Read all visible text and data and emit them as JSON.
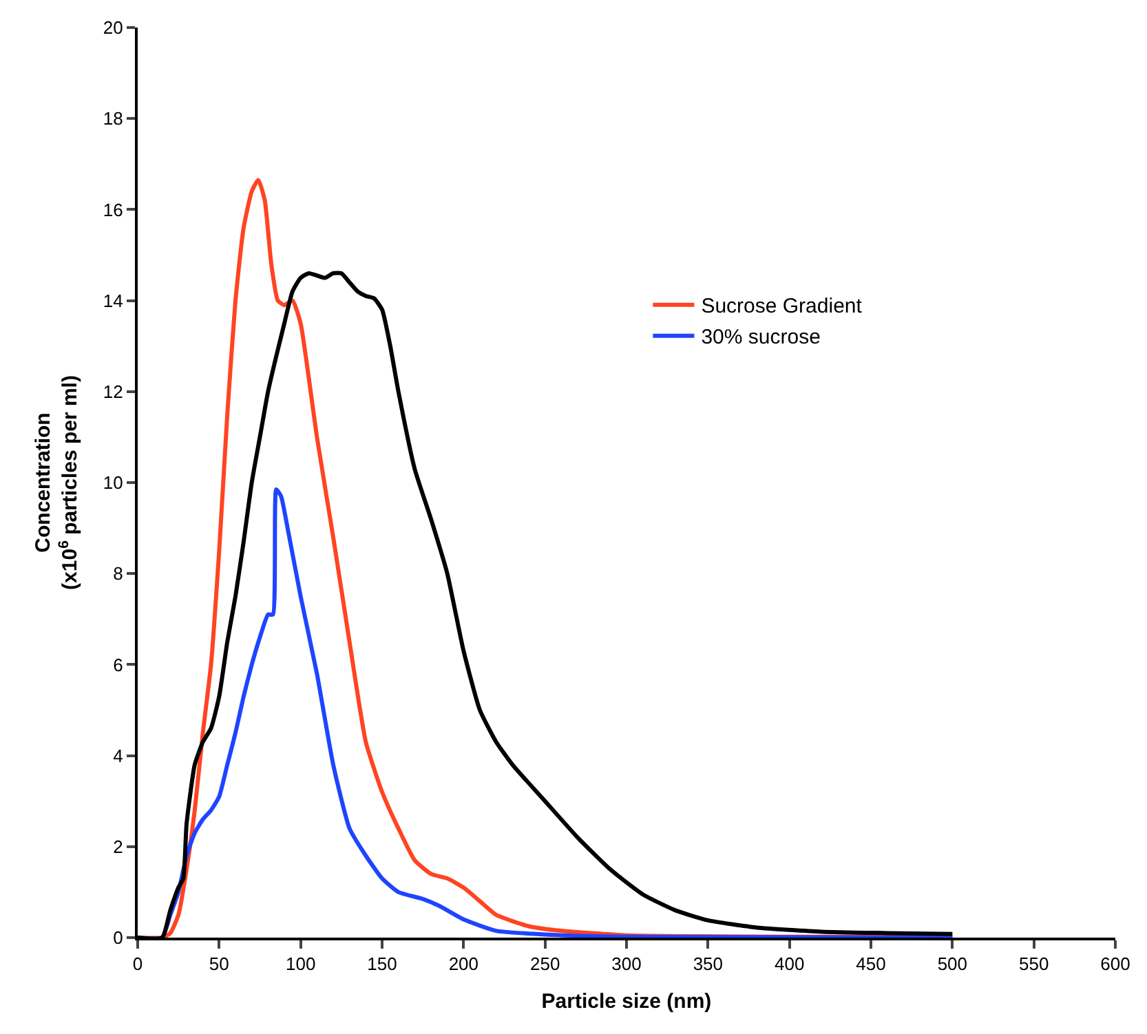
{
  "chart_data": {
    "type": "line",
    "xlabel": "Particle size (nm)",
    "ylabel": "Concentration\n(x10$^{6}$ particles per ml)",
    "xlim": [
      0,
      600
    ],
    "xticks": [
      0,
      50,
      100,
      150,
      200,
      250,
      300,
      350,
      400,
      450,
      500,
      550,
      600
    ],
    "ylim": [
      0,
      20
    ],
    "yticks": [
      0,
      2,
      4,
      6,
      8,
      10,
      12,
      14,
      16,
      18,
      20
    ],
    "legend": "top right",
    "marker": "none",
    "line_style": "solid",
    "series": [
      {
        "name": "Sucrose Gradient",
        "color": "#ff4422",
        "x": [
          0,
          15,
          20,
          25,
          30,
          35,
          40,
          45,
          50,
          55,
          60,
          65,
          70,
          74,
          78,
          82,
          86,
          90,
          95,
          100,
          105,
          110,
          120,
          130,
          140,
          150,
          160,
          170,
          180,
          190,
          200,
          210,
          220,
          240,
          260,
          300,
          400,
          500
        ],
        "values": [
          0,
          0,
          0.1,
          0.5,
          1.5,
          2.8,
          4.5,
          6,
          8.5,
          11.5,
          14,
          15.6,
          16.4,
          16.65,
          16.2,
          14.8,
          14,
          13.9,
          14,
          13.5,
          12.3,
          11,
          8.8,
          6.5,
          4.3,
          3.2,
          2.4,
          1.7,
          1.4,
          1.3,
          1.1,
          0.8,
          0.5,
          0.25,
          0.15,
          0.05,
          0.02,
          0.02
        ]
      },
      {
        "name": "30% sucrose",
        "color": "#1f44ff",
        "x": [
          0,
          15,
          20,
          25,
          30,
          35,
          40,
          45,
          50,
          55,
          60,
          65,
          70,
          75,
          80,
          83,
          85,
          88,
          92,
          100,
          110,
          120,
          130,
          140,
          150,
          160,
          175,
          185,
          200,
          220,
          250,
          300,
          500
        ],
        "values": [
          0,
          0,
          0.5,
          1.0,
          1.8,
          2.3,
          2.6,
          2.8,
          3.1,
          3.8,
          4.5,
          5.3,
          6.0,
          6.6,
          7.1,
          7.1,
          9.85,
          9.7,
          9.0,
          7.5,
          5.8,
          3.8,
          2.4,
          1.8,
          1.3,
          1.0,
          0.85,
          0.7,
          0.4,
          0.15,
          0.07,
          0.02,
          0
        ]
      },
      {
        "color": "#000000",
        "x": [
          0,
          15,
          20,
          25,
          28,
          30,
          35,
          40,
          45,
          50,
          55,
          60,
          65,
          70,
          75,
          80,
          90,
          95,
          100,
          105,
          110,
          115,
          120,
          125,
          130,
          135,
          140,
          145,
          150,
          155,
          160,
          170,
          180,
          190,
          200,
          210,
          220,
          230,
          250,
          270,
          290,
          310,
          330,
          350,
          380,
          420,
          460,
          500
        ],
        "values": [
          0,
          0,
          0.6,
          1.1,
          1.3,
          2.5,
          3.8,
          4.3,
          4.6,
          5.3,
          6.5,
          7.5,
          8.7,
          10.0,
          11.0,
          12.0,
          13.5,
          14.2,
          14.5,
          14.6,
          14.55,
          14.5,
          14.6,
          14.6,
          14.4,
          14.2,
          14.1,
          14.05,
          13.8,
          13.0,
          12.0,
          10.3,
          9.2,
          8.0,
          6.3,
          5.0,
          4.3,
          3.8,
          3.0,
          2.2,
          1.5,
          0.95,
          0.6,
          0.38,
          0.22,
          0.13,
          0.1,
          0.08
        ]
      }
    ]
  }
}
